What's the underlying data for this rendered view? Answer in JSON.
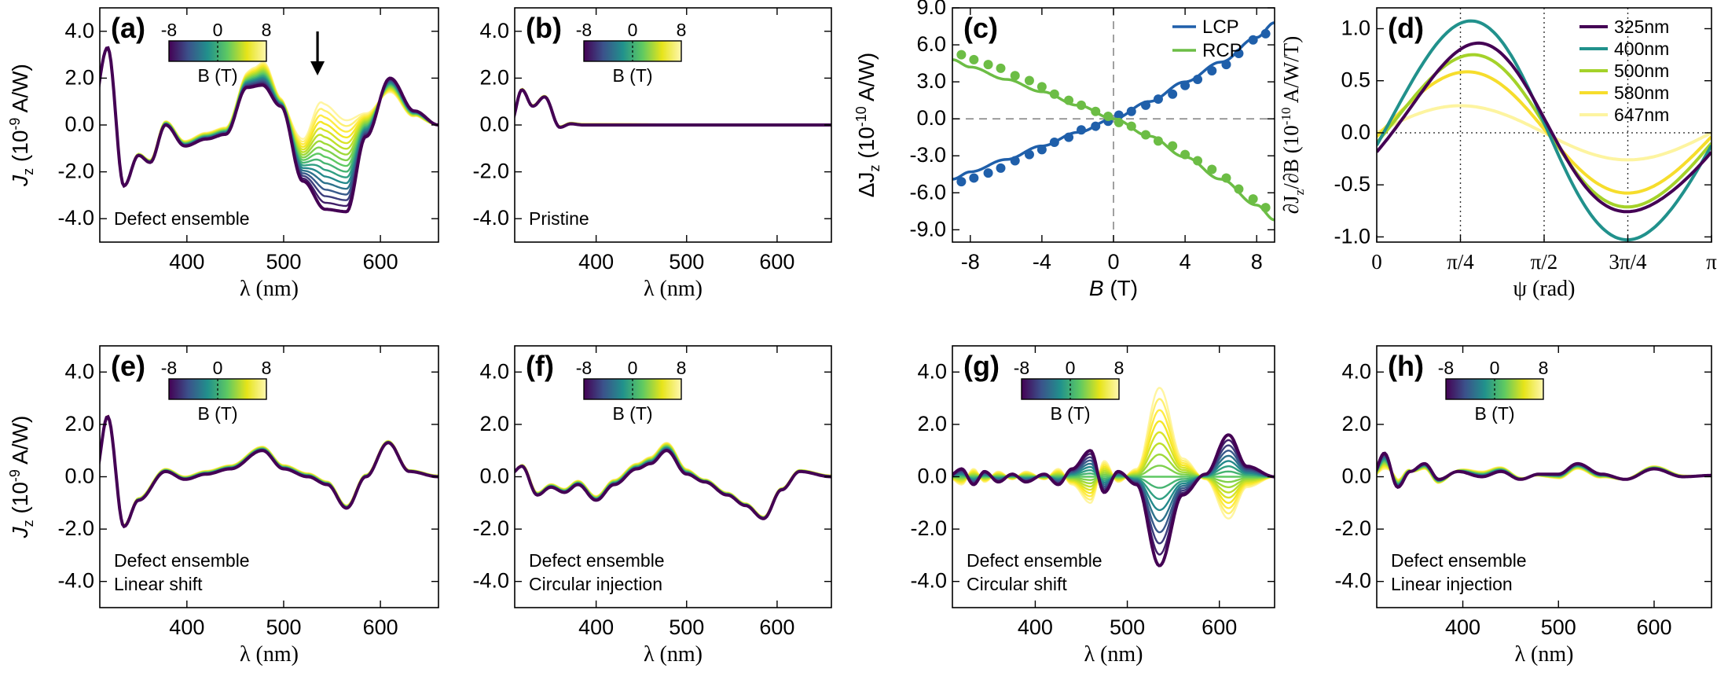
{
  "figure": {
    "panels": [
      "(a)",
      "(b)",
      "(c)",
      "(d)",
      "(e)",
      "(f)",
      "(g)",
      "(h)"
    ]
  },
  "common": {
    "jz_ylabel_main": "J",
    "jz_ylabel_sub": "z",
    "jz_ylabel_unit": " (10",
    "jz_ylabel_exp": "-9",
    "jz_ylabel_tail": " A/W)",
    "lambda_xlabel": "λ (nm)",
    "colorbar_label": "B (T)",
    "colorbar_ticks": [
      "-8",
      "0",
      "8"
    ],
    "colormap": [
      "#440154",
      "#3b528b",
      "#21918c",
      "#5ec962",
      "#b5de2b",
      "#fde725",
      "#fff5a0"
    ]
  },
  "chart_data": [
    {
      "id": "a",
      "type": "line",
      "label": "(a)",
      "annotations": [
        "Defect ensemble"
      ],
      "arrow_at_x": 535,
      "xlim": [
        310,
        660
      ],
      "ylim": [
        -5,
        5
      ],
      "xticks": [
        400,
        500,
        600
      ],
      "yticks": [
        4.0,
        2.0,
        0.0,
        -2.0,
        -4.0
      ],
      "ytick_labels": [
        "4.0",
        "2.0",
        "0.0",
        "-2.0",
        "-4.0"
      ],
      "series_param": "B (T)",
      "B_values": [
        -8,
        8
      ],
      "dominant_series": "B = -8 T",
      "peaks": [
        [
          300,
          0
        ],
        [
          318,
          3.3
        ],
        [
          335,
          -2.6
        ],
        [
          350,
          -1.3
        ],
        [
          362,
          -1.6
        ],
        [
          378,
          0.0
        ],
        [
          398,
          -0.9
        ],
        [
          420,
          -0.6
        ],
        [
          440,
          -0.4
        ],
        [
          462,
          1.6
        ],
        [
          478,
          1.7
        ],
        [
          497,
          0.8
        ],
        [
          520,
          -2.4
        ],
        [
          543,
          -3.6
        ],
        [
          565,
          -3.7
        ],
        [
          585,
          -0.5
        ],
        [
          610,
          2.0
        ],
        [
          635,
          0.6
        ],
        [
          660,
          0.0
        ]
      ],
      "variation_by_B": [
        [
          300,
          0
        ],
        [
          450,
          0.3
        ],
        [
          470,
          0.8
        ],
        [
          480,
          1.0
        ],
        [
          500,
          0.3
        ],
        [
          520,
          1.8
        ],
        [
          540,
          4.5
        ],
        [
          565,
          3.9
        ],
        [
          585,
          1.0
        ],
        [
          610,
          -0.6
        ],
        [
          640,
          -0.2
        ],
        [
          660,
          0
        ]
      ]
    },
    {
      "id": "b",
      "type": "line",
      "label": "(b)",
      "annotations": [
        "Pristine"
      ],
      "xlim": [
        310,
        660
      ],
      "ylim": [
        -5,
        5
      ],
      "xticks": [
        400,
        500,
        600
      ],
      "yticks": [
        4.0,
        2.0,
        0.0,
        -2.0,
        -4.0
      ],
      "ytick_labels": [
        "4.0",
        "2.0",
        "0.0",
        "-2.0",
        "-4.0"
      ],
      "series_param": "B (T)",
      "B_values": [
        -8,
        8
      ],
      "peaks": [
        [
          305,
          0.0
        ],
        [
          318,
          1.5
        ],
        [
          330,
          0.8
        ],
        [
          343,
          1.2
        ],
        [
          360,
          -0.1
        ],
        [
          372,
          0.05
        ],
        [
          385,
          0.0
        ],
        [
          660,
          0.0
        ]
      ],
      "variation_by_B": [
        [
          305,
          0
        ],
        [
          320,
          0.05
        ],
        [
          660,
          0
        ]
      ]
    },
    {
      "id": "c",
      "type": "scatter+line",
      "label": "(c)",
      "xlabel_italic": "B",
      "xlabel_tail": " (T)",
      "ylabel": "ΔJ",
      "ylabel_sub": "z",
      "ylabel_unit": " (10",
      "ylabel_exp": "-10",
      "ylabel_tail": " A/W)",
      "xlim": [
        -9,
        9
      ],
      "ylim": [
        -10,
        9
      ],
      "xticks": [
        -8,
        -4,
        0,
        4,
        8
      ],
      "xtick_labels": [
        "-8",
        "-4",
        "0",
        "4",
        "8"
      ],
      "yticks": [
        9,
        6,
        3,
        0,
        -3,
        -6,
        -9
      ],
      "ytick_labels": [
        "9.0",
        "6.0",
        "3.0",
        "0.0",
        "-3.0",
        "-6.0",
        "-9.0"
      ],
      "legend": [
        "LCP",
        "RCP"
      ],
      "legend_position": "top-right",
      "series": [
        {
          "name": "LCP",
          "color": "#1f5faa",
          "fit": [
            [
              -9,
              -4.9
            ],
            [
              -8,
              -4.3
            ],
            [
              -6,
              -3.3
            ],
            [
              -4,
              -2.2
            ],
            [
              -2,
              -1.1
            ],
            [
              0,
              0
            ],
            [
              2,
              1.4
            ],
            [
              4,
              3.0
            ],
            [
              6,
              4.6
            ],
            [
              8,
              6.6
            ],
            [
              9,
              7.8
            ]
          ],
          "points": [
            [
              -8.5,
              -5.1
            ],
            [
              -7.8,
              -4.8
            ],
            [
              -7,
              -4.4
            ],
            [
              -6.3,
              -4.0
            ],
            [
              -5.5,
              -3.4
            ],
            [
              -4.7,
              -2.9
            ],
            [
              -4,
              -2.5
            ],
            [
              -3.3,
              -1.9
            ],
            [
              -2.5,
              -1.5
            ],
            [
              -1.8,
              -0.9
            ],
            [
              -1,
              -0.6
            ],
            [
              -0.3,
              -0.2
            ],
            [
              0.3,
              0.3
            ],
            [
              1,
              0.6
            ],
            [
              1.8,
              1.1
            ],
            [
              2.5,
              1.6
            ],
            [
              3.3,
              2.0
            ],
            [
              4,
              2.7
            ],
            [
              4.7,
              3.2
            ],
            [
              5.5,
              3.9
            ],
            [
              6.3,
              4.4
            ],
            [
              7,
              5.3
            ],
            [
              7.8,
              6.4
            ],
            [
              8.5,
              6.9
            ]
          ]
        },
        {
          "name": "RCP",
          "color": "#6cbd45",
          "fit": [
            [
              -9,
              4.8
            ],
            [
              -8,
              4.2
            ],
            [
              -6,
              3.2
            ],
            [
              -4,
              2.2
            ],
            [
              -2,
              1.1
            ],
            [
              0,
              0
            ],
            [
              2,
              -1.4
            ],
            [
              4,
              -3.1
            ],
            [
              6,
              -4.9
            ],
            [
              8,
              -7.0
            ],
            [
              9,
              -8.2
            ]
          ],
          "points": [
            [
              -8.5,
              5.2
            ],
            [
              -7.8,
              4.8
            ],
            [
              -7,
              4.4
            ],
            [
              -6.3,
              4.1
            ],
            [
              -5.5,
              3.5
            ],
            [
              -4.7,
              3.1
            ],
            [
              -4,
              2.6
            ],
            [
              -3.3,
              2.0
            ],
            [
              -2.5,
              1.5
            ],
            [
              -1.8,
              1.1
            ],
            [
              -1,
              0.6
            ],
            [
              -0.3,
              0.2
            ],
            [
              0.3,
              -0.3
            ],
            [
              1,
              -0.6
            ],
            [
              1.8,
              -1.3
            ],
            [
              2.5,
              -1.8
            ],
            [
              3.3,
              -2.2
            ],
            [
              4,
              -2.9
            ],
            [
              4.7,
              -3.4
            ],
            [
              5.5,
              -4.1
            ],
            [
              6.3,
              -4.8
            ],
            [
              7,
              -5.7
            ],
            [
              7.8,
              -6.5
            ],
            [
              8.5,
              -7.2
            ]
          ]
        }
      ]
    },
    {
      "id": "d",
      "type": "line",
      "label": "(d)",
      "xlabel": "ψ (rad)",
      "ylabel_pre": "∂J",
      "ylabel_sub": "z",
      "ylabel_mid": "/∂B (10",
      "ylabel_exp": "-10",
      "ylabel_tail": " A/W/T)",
      "xlim": [
        0,
        3.14159
      ],
      "ylim": [
        -1.05,
        1.2
      ],
      "xtick_labels": [
        "0",
        "π/4",
        "π/2",
        "3π/4",
        "π"
      ],
      "yticks": [
        1.0,
        0.5,
        0.0,
        -0.5,
        -1.0
      ],
      "ytick_labels": [
        "1.0",
        "0.5",
        "0.0",
        "-0.5",
        "-1.0"
      ],
      "legend_position": "top-right",
      "series": [
        {
          "name": "325nm",
          "color": "#440154",
          "a": 0.78,
          "b": 0.18,
          "phi": 0.25
        },
        {
          "name": "400nm",
          "color": "#21918c",
          "a": 1.04,
          "b": 0.12,
          "phi": 0.2
        },
        {
          "name": "500nm",
          "color": "#a4d22a",
          "a": 0.72,
          "b": 0.1,
          "phi": 0.15
        },
        {
          "name": "580nm",
          "color": "#f6dd2c",
          "a": 0.58,
          "b": 0.04,
          "phi": 0.05
        },
        {
          "name": "647nm",
          "color": "#fdf4a0",
          "a": 0.26,
          "b": 0.0,
          "phi": 0.0
        }
      ]
    },
    {
      "id": "e",
      "type": "line",
      "label": "(e)",
      "annotations": [
        "Defect ensemble",
        "Linear shift"
      ],
      "xlim": [
        310,
        660
      ],
      "ylim": [
        -5,
        5
      ],
      "xticks": [
        400,
        500,
        600
      ],
      "yticks": [
        4.0,
        2.0,
        0.0,
        -2.0,
        -4.0
      ],
      "ytick_labels": [
        "4.0",
        "2.0",
        "0.0",
        "-2.0",
        "-4.0"
      ],
      "peaks": [
        [
          305,
          0
        ],
        [
          318,
          2.3
        ],
        [
          335,
          -1.9
        ],
        [
          350,
          -0.9
        ],
        [
          378,
          0.2
        ],
        [
          398,
          -0.1
        ],
        [
          420,
          0.1
        ],
        [
          445,
          0.3
        ],
        [
          478,
          1.0
        ],
        [
          500,
          0.3
        ],
        [
          525,
          0.0
        ],
        [
          545,
          -0.3
        ],
        [
          565,
          -1.2
        ],
        [
          585,
          0.0
        ],
        [
          608,
          1.3
        ],
        [
          630,
          0.2
        ],
        [
          660,
          0.0
        ]
      ],
      "variation_by_B": [
        [
          305,
          0
        ],
        [
          330,
          0.05
        ],
        [
          360,
          0.1
        ],
        [
          480,
          0.15
        ],
        [
          660,
          0.05
        ]
      ]
    },
    {
      "id": "f",
      "type": "line",
      "label": "(f)",
      "annotations": [
        "Defect ensemble",
        "Circular injection"
      ],
      "xlim": [
        310,
        660
      ],
      "ylim": [
        -5,
        5
      ],
      "xticks": [
        400,
        500,
        600
      ],
      "yticks": [
        4.0,
        2.0,
        0.0,
        -2.0,
        -4.0
      ],
      "ytick_labels": [
        "4.0",
        "2.0",
        "0.0",
        "-2.0",
        "-4.0"
      ],
      "peaks": [
        [
          305,
          0.1
        ],
        [
          318,
          0.4
        ],
        [
          335,
          -0.7
        ],
        [
          350,
          -0.4
        ],
        [
          365,
          -0.6
        ],
        [
          380,
          -0.3
        ],
        [
          400,
          -0.9
        ],
        [
          420,
          -0.3
        ],
        [
          445,
          0.3
        ],
        [
          460,
          0.5
        ],
        [
          478,
          1.0
        ],
        [
          500,
          0.1
        ],
        [
          520,
          -0.2
        ],
        [
          545,
          -0.7
        ],
        [
          565,
          -1.1
        ],
        [
          585,
          -1.6
        ],
        [
          605,
          -0.5
        ],
        [
          625,
          0.2
        ],
        [
          660,
          0.0
        ]
      ],
      "variation_by_B": [
        [
          305,
          0
        ],
        [
          330,
          0.1
        ],
        [
          380,
          0.15
        ],
        [
          440,
          0.2
        ],
        [
          478,
          0.3
        ],
        [
          520,
          0.1
        ],
        [
          660,
          0.05
        ]
      ]
    },
    {
      "id": "g",
      "type": "line",
      "label": "(g)",
      "annotations": [
        "Defect ensemble",
        "Circular shift"
      ],
      "xlim": [
        310,
        660
      ],
      "ylim": [
        -5,
        5
      ],
      "xticks": [
        400,
        500,
        600
      ],
      "yticks": [
        4.0,
        2.0,
        0.0,
        -2.0,
        -4.0
      ],
      "ytick_labels": [
        "4.0",
        "2.0",
        "0.0",
        "-2.0",
        "-4.0"
      ],
      "peaks": [
        [
          305,
          0
        ],
        [
          320,
          0.3
        ],
        [
          333,
          -0.3
        ],
        [
          345,
          0.2
        ],
        [
          360,
          -0.2
        ],
        [
          375,
          0.1
        ],
        [
          390,
          -0.2
        ],
        [
          410,
          0.1
        ],
        [
          425,
          -0.3
        ],
        [
          440,
          0.3
        ],
        [
          460,
          1.0
        ],
        [
          475,
          -0.6
        ],
        [
          490,
          0.2
        ],
        [
          510,
          -0.3
        ],
        [
          535,
          -3.4
        ],
        [
          560,
          -0.7
        ],
        [
          585,
          0.1
        ],
        [
          610,
          1.6
        ],
        [
          630,
          0.4
        ],
        [
          660,
          0.0
        ]
      ]
    },
    {
      "id": "h",
      "type": "line",
      "label": "(h)",
      "annotations": [
        "Defect ensemble",
        "Linear injection"
      ],
      "xlim": [
        310,
        660
      ],
      "ylim": [
        -5,
        5
      ],
      "xticks": [
        400,
        500,
        600
      ],
      "yticks": [
        4.0,
        2.0,
        0.0,
        -2.0,
        -4.0
      ],
      "ytick_labels": [
        "4.0",
        "2.0",
        "0.0",
        "-2.0",
        "-4.0"
      ],
      "peaks": [
        [
          305,
          0
        ],
        [
          318,
          0.9
        ],
        [
          332,
          -0.4
        ],
        [
          345,
          0.2
        ],
        [
          360,
          0.5
        ],
        [
          375,
          -0.1
        ],
        [
          395,
          0.2
        ],
        [
          420,
          0.0
        ],
        [
          440,
          0.2
        ],
        [
          460,
          -0.1
        ],
        [
          480,
          0.1
        ],
        [
          500,
          0.1
        ],
        [
          520,
          0.5
        ],
        [
          545,
          0.1
        ],
        [
          570,
          -0.1
        ],
        [
          600,
          0.3
        ],
        [
          630,
          0.0
        ],
        [
          660,
          0.05
        ]
      ],
      "variation_by_B": [
        [
          305,
          0
        ],
        [
          318,
          -0.6
        ],
        [
          330,
          0.3
        ],
        [
          360,
          -0.2
        ],
        [
          420,
          0.2
        ],
        [
          520,
          -0.2
        ],
        [
          600,
          0.1
        ],
        [
          660,
          0
        ]
      ]
    }
  ]
}
